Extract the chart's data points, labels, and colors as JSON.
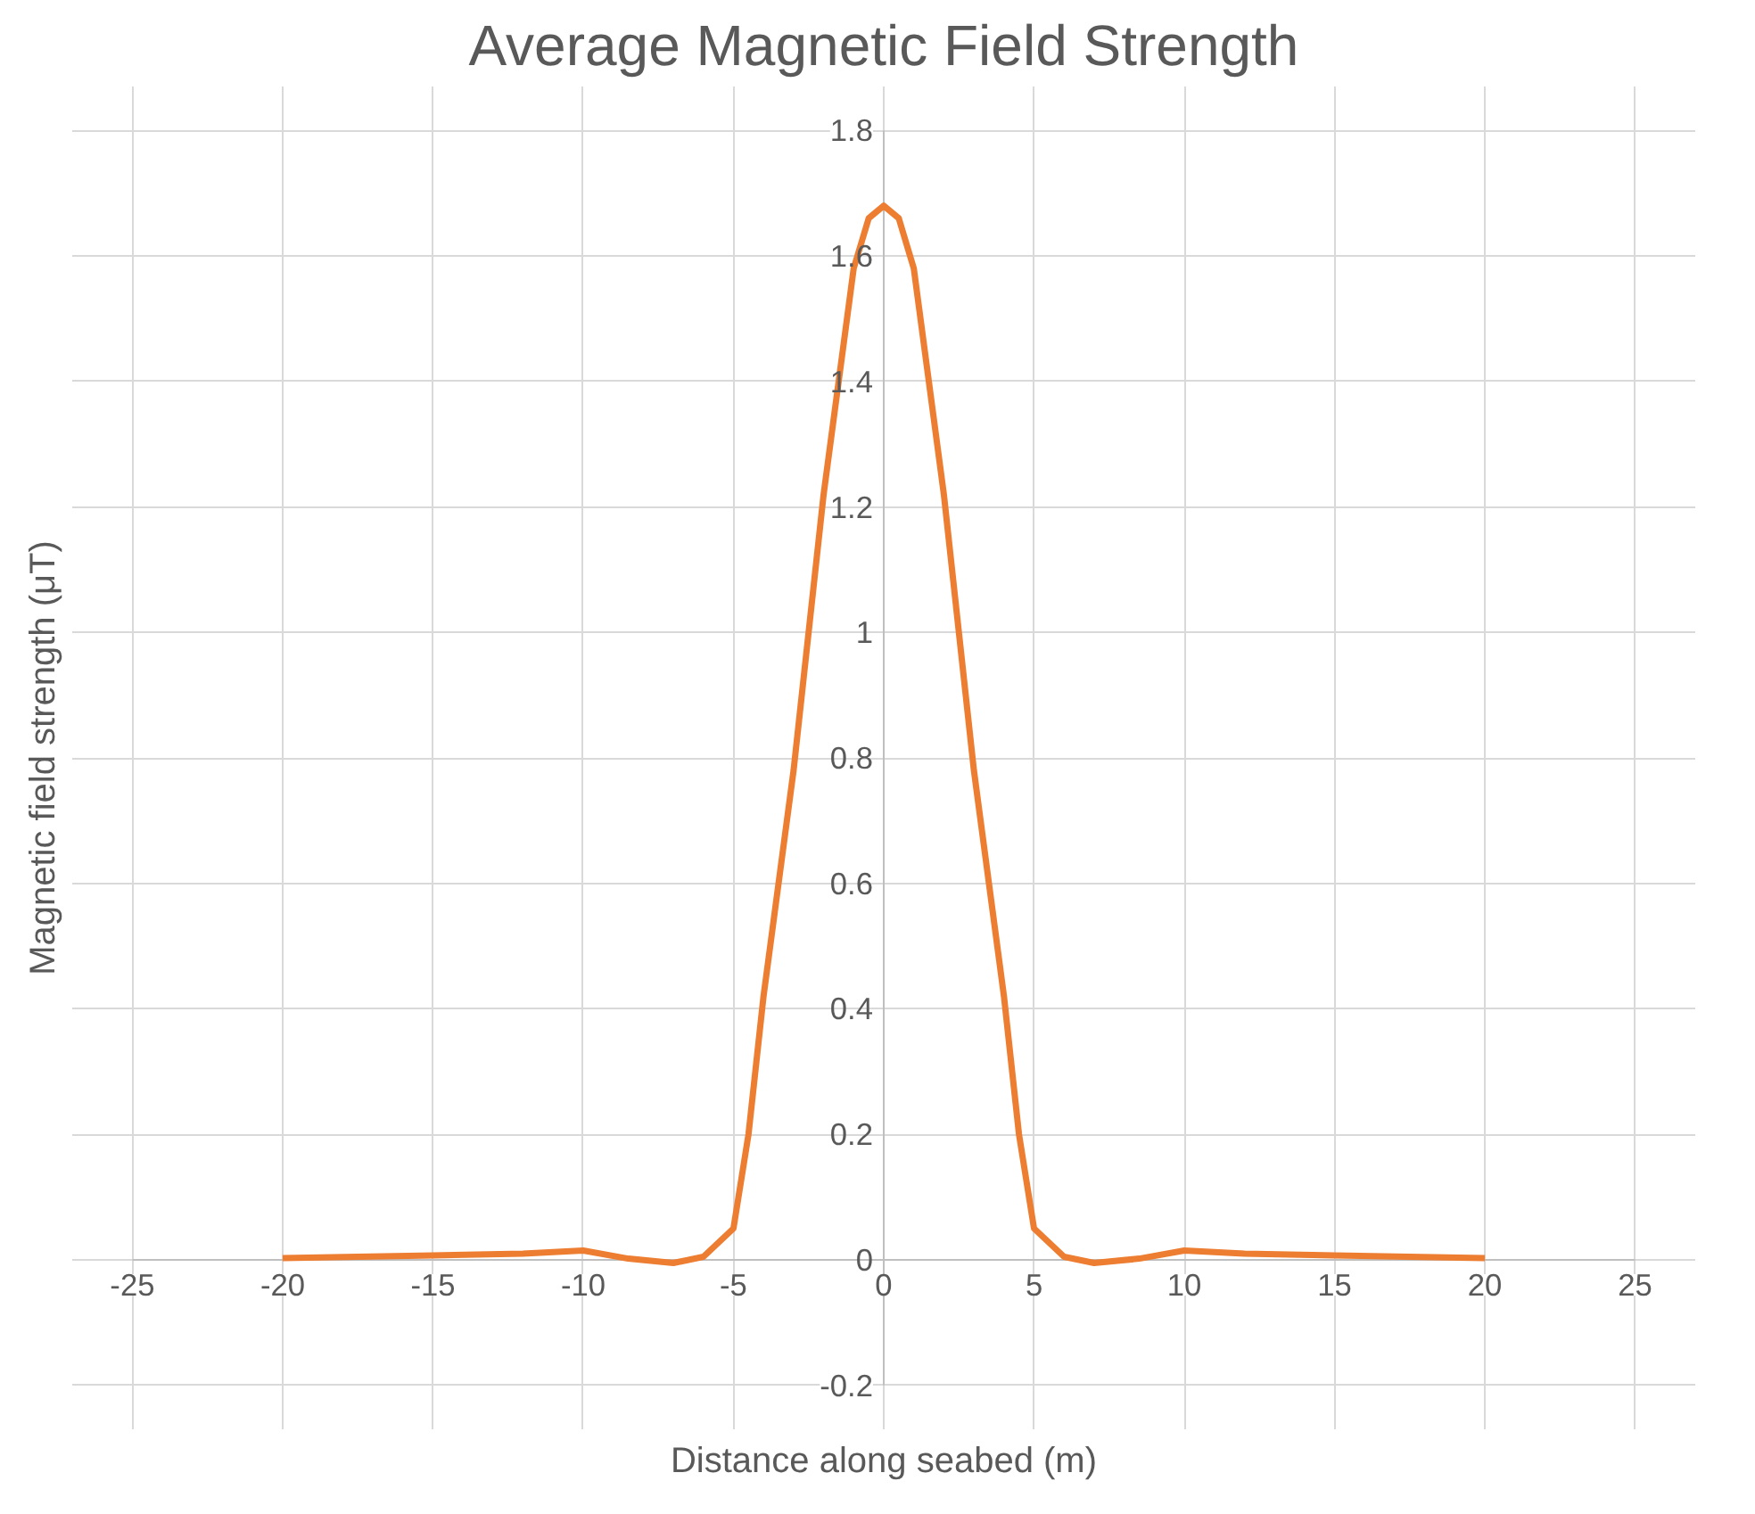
{
  "chart_data": {
    "type": "line",
    "title": "Average Magnetic Field Strength",
    "xlabel": "Distance along seabed (m)",
    "ylabel": "Magnetic field strength (μT)",
    "x": [
      -20,
      -15,
      -12,
      -10,
      -8.5,
      -7,
      -6,
      -5,
      -4.5,
      -4,
      -3,
      -2,
      -1,
      -0.5,
      0,
      0.5,
      1,
      2,
      3,
      4,
      4.5,
      5,
      6,
      7,
      8.5,
      10,
      12,
      15,
      20
    ],
    "series": [
      {
        "color": "#ed7d31",
        "values": [
          0.003,
          0.007,
          0.01,
          0.015,
          0.002,
          -0.005,
          0.005,
          0.05,
          0.2,
          0.42,
          0.78,
          1.22,
          1.58,
          1.66,
          1.68,
          1.66,
          1.58,
          1.22,
          0.78,
          0.42,
          0.2,
          0.05,
          0.005,
          -0.005,
          0.002,
          0.015,
          0.01,
          0.007,
          0.003
        ]
      }
    ],
    "xlim": [
      -25,
      25
    ],
    "ylim": [
      -0.2,
      1.8
    ],
    "xticks": [
      -25,
      -20,
      -15,
      -10,
      -5,
      0,
      5,
      10,
      15,
      20,
      25
    ],
    "yticks": [
      -0.2,
      0,
      0.2,
      0.4,
      0.6,
      0.8,
      1,
      1.2,
      1.4,
      1.6,
      1.8
    ],
    "grid": true,
    "marker": "none",
    "line_style": "solid"
  }
}
